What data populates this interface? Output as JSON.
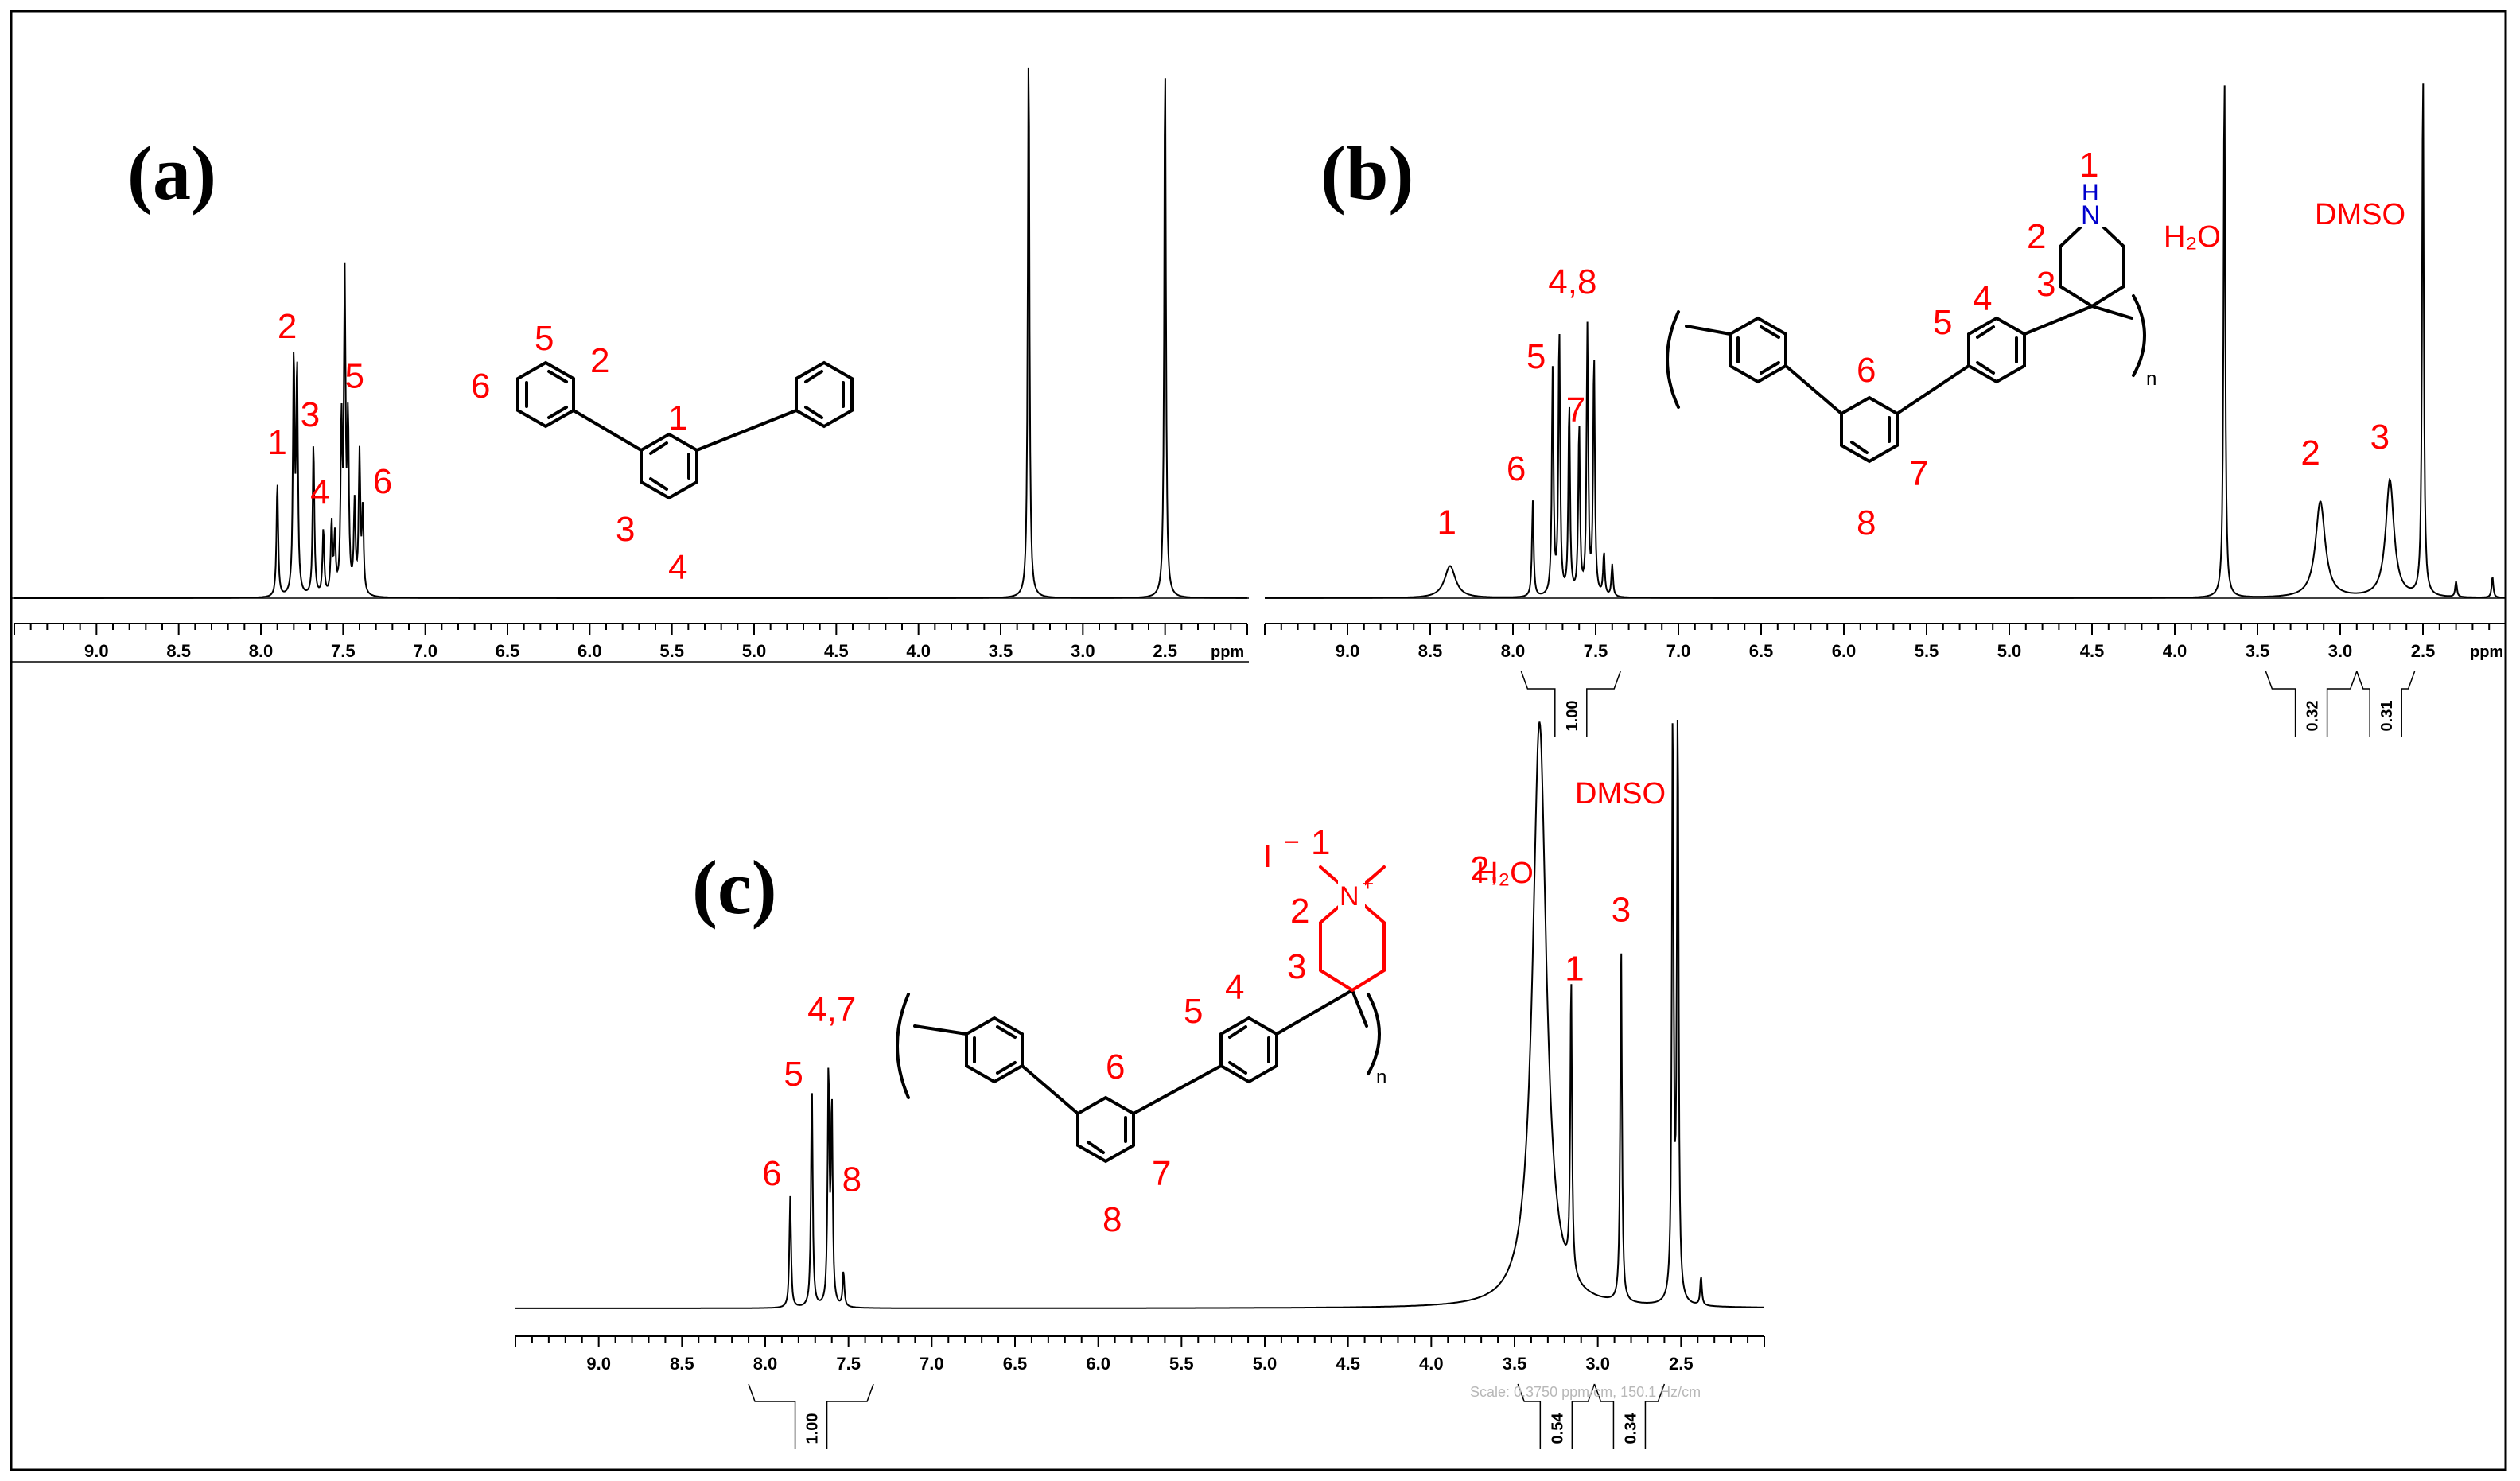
{
  "chart_data": [
    {
      "type": "line",
      "panel": "(a)",
      "xlabel": "ppm",
      "xlim": [
        9.5,
        2.0
      ],
      "x_ticks": [
        "9.0",
        "8.5",
        "8.0",
        "7.5",
        "7.0",
        "6.5",
        "6.0",
        "5.5",
        "5.0",
        "4.5",
        "4.0",
        "3.5",
        "3.0",
        "2.5"
      ],
      "peaks": [
        {
          "ppm": 7.9,
          "height": 0.21
        },
        {
          "ppm": 7.8,
          "height": 0.43
        },
        {
          "ppm": 7.78,
          "height": 0.41
        },
        {
          "ppm": 7.68,
          "height": 0.28
        },
        {
          "ppm": 7.62,
          "height": 0.12
        },
        {
          "ppm": 7.57,
          "height": 0.13
        },
        {
          "ppm": 7.55,
          "height": 0.1
        },
        {
          "ppm": 7.51,
          "height": 0.3
        },
        {
          "ppm": 7.49,
          "height": 0.55
        },
        {
          "ppm": 7.47,
          "height": 0.3
        },
        {
          "ppm": 7.43,
          "height": 0.16
        },
        {
          "ppm": 7.4,
          "height": 0.25
        },
        {
          "ppm": 7.38,
          "height": 0.15
        },
        {
          "ppm": 3.33,
          "height": 1.0
        },
        {
          "ppm": 2.5,
          "height": 0.98
        }
      ],
      "labels": [
        {
          "text": "1",
          "ppm": 7.9,
          "height": 0.26
        },
        {
          "text": "2",
          "ppm": 7.84,
          "height": 0.47
        },
        {
          "text": "3",
          "ppm": 7.7,
          "height": 0.31
        },
        {
          "text": "4",
          "ppm": 7.64,
          "height": 0.17
        },
        {
          "text": "5",
          "ppm": 7.43,
          "height": 0.38
        },
        {
          "text": "6",
          "ppm": 7.26,
          "height": 0.19
        }
      ],
      "structure_labels": [
        "5",
        "2",
        "6",
        "1",
        "3",
        "4"
      ]
    },
    {
      "type": "line",
      "panel": "(b)",
      "xlabel": "ppm",
      "xlim": [
        9.5,
        2.0
      ],
      "x_ticks": [
        "9.0",
        "8.5",
        "8.0",
        "7.5",
        "7.0",
        "6.5",
        "6.0",
        "5.5",
        "5.0",
        "4.5",
        "4.0",
        "3.5",
        "3.0",
        "2.5"
      ],
      "peaks": [
        {
          "ppm": 8.38,
          "height": 0.06,
          "width": 0.04
        },
        {
          "ppm": 7.88,
          "height": 0.18
        },
        {
          "ppm": 7.76,
          "height": 0.42
        },
        {
          "ppm": 7.72,
          "height": 0.5
        },
        {
          "ppm": 7.66,
          "height": 0.36
        },
        {
          "ppm": 7.6,
          "height": 0.32
        },
        {
          "ppm": 7.55,
          "height": 0.5
        },
        {
          "ppm": 7.51,
          "height": 0.45
        },
        {
          "ppm": 7.45,
          "height": 0.08
        },
        {
          "ppm": 7.4,
          "height": 0.06
        },
        {
          "ppm": 3.7,
          "height": 1.0
        },
        {
          "ppm": 3.12,
          "height": 0.18,
          "width": 0.035
        },
        {
          "ppm": 2.7,
          "height": 0.22,
          "width": 0.03
        },
        {
          "ppm": 2.5,
          "height": 1.0
        },
        {
          "ppm": 2.3,
          "height": 0.03
        },
        {
          "ppm": 2.08,
          "height": 0.04
        }
      ],
      "labels": [
        {
          "text": "1",
          "ppm": 8.4,
          "height": 0.12
        },
        {
          "text": "6",
          "ppm": 7.98,
          "height": 0.22
        },
        {
          "text": "5",
          "ppm": 7.86,
          "height": 0.43
        },
        {
          "text": "7",
          "ppm": 7.62,
          "height": 0.33
        },
        {
          "text": "4,8",
          "ppm": 7.64,
          "height": 0.57
        },
        {
          "text": "2",
          "ppm": 3.18,
          "height": 0.25
        },
        {
          "text": "3",
          "ppm": 2.76,
          "height": 0.28
        }
      ],
      "solvent_labels": {
        "water": "H₂O",
        "dmso": "DMSO"
      },
      "structure_labels": [
        "1",
        "2",
        "3",
        "4",
        "5",
        "6",
        "7",
        "8",
        "n"
      ],
      "integrals": [
        {
          "label": "1.00",
          "ppm_range": [
            7.95,
            7.35
          ]
        },
        {
          "label": "0.32",
          "ppm_range": [
            3.45,
            2.9
          ]
        },
        {
          "label": "0.31",
          "ppm_range": [
            2.9,
            2.55
          ]
        }
      ]
    },
    {
      "type": "line",
      "panel": "(c)",
      "xlabel": "ppm",
      "xlim": [
        9.5,
        2.0
      ],
      "x_ticks": [
        "9.0",
        "8.5",
        "8.0",
        "7.5",
        "7.0",
        "6.5",
        "6.0",
        "5.5",
        "5.0",
        "4.5",
        "4.0",
        "3.5",
        "3.0",
        "2.5"
      ],
      "peaks": [
        {
          "ppm": 7.85,
          "height": 0.19
        },
        {
          "ppm": 7.72,
          "height": 0.38
        },
        {
          "ppm": 7.62,
          "height": 0.4
        },
        {
          "ppm": 7.6,
          "height": 0.34
        },
        {
          "ppm": 7.53,
          "height": 0.06
        },
        {
          "ppm": 3.35,
          "height": 1.0,
          "width": 0.05
        },
        {
          "ppm": 3.16,
          "height": 0.51
        },
        {
          "ppm": 2.86,
          "height": 0.62
        },
        {
          "ppm": 2.55,
          "height": 1.0
        },
        {
          "ppm": 2.52,
          "height": 1.0
        },
        {
          "ppm": 2.38,
          "height": 0.05
        }
      ],
      "labels": [
        {
          "text": "6",
          "ppm": 7.96,
          "height": 0.21
        },
        {
          "text": "5",
          "ppm": 7.83,
          "height": 0.38
        },
        {
          "text": "4,7",
          "ppm": 7.6,
          "height": 0.49
        },
        {
          "text": "8",
          "ppm": 7.48,
          "height": 0.2
        },
        {
          "text": "2,",
          "ppm": 3.68,
          "height": 0.73
        },
        {
          "text": "1",
          "ppm": 3.14,
          "height": 0.56
        },
        {
          "text": "3",
          "ppm": 2.86,
          "height": 0.66
        }
      ],
      "solvent_labels": {
        "water": "H₂O",
        "dmso": "DMSO"
      },
      "structure_labels": [
        "1",
        "2",
        "3",
        "4",
        "5",
        "6",
        "7",
        "8",
        "n"
      ],
      "counterion": "I",
      "integrals": [
        {
          "label": "1.00",
          "ppm_range": [
            8.1,
            7.35
          ]
        },
        {
          "label": "0.54",
          "ppm_range": [
            3.48,
            3.02
          ]
        },
        {
          "label": "0.34",
          "ppm_range": [
            3.02,
            2.6
          ]
        }
      ],
      "scale_note": "Scale: 0.3750 ppm/cm, 150.1 Hz/cm"
    }
  ]
}
